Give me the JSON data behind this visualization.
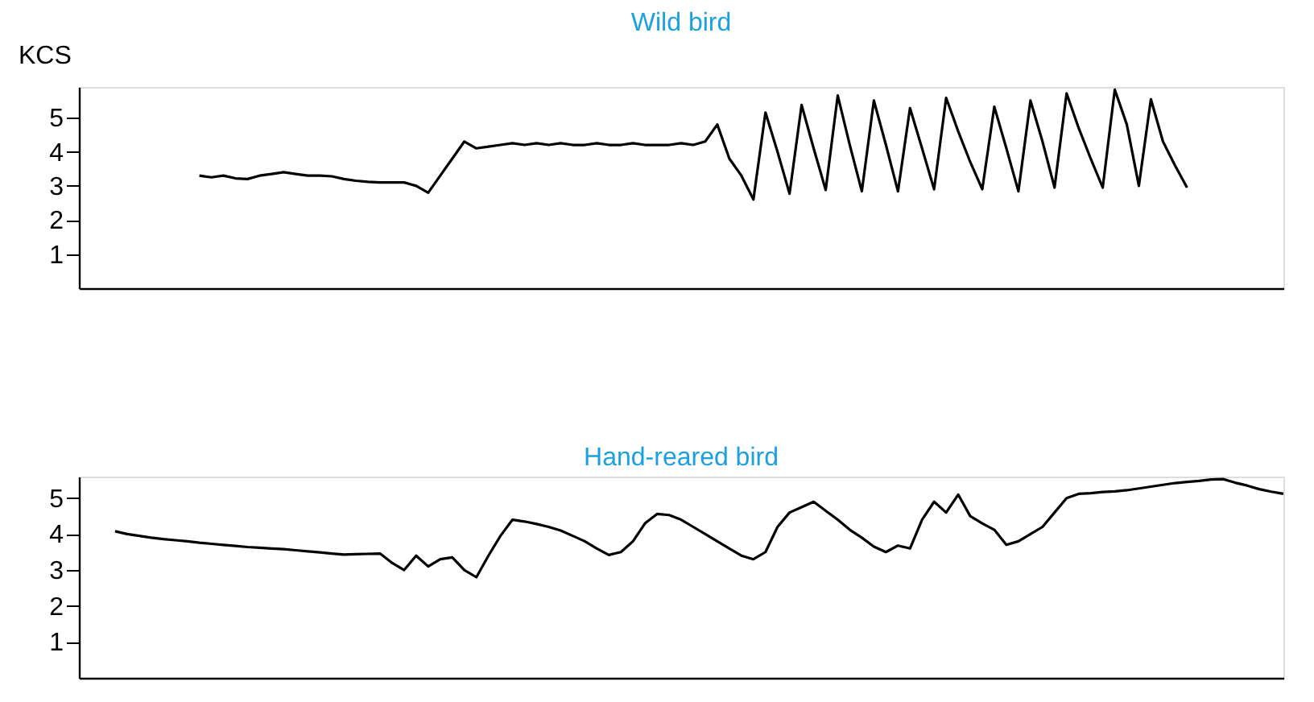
{
  "chart_data": [
    {
      "type": "line",
      "title": "Wild bird",
      "ylabel": "KCS",
      "categories": [
        null,
        null,
        null,
        null,
        null,
        null,
        null,
        null,
        null,
        null,
        null,
        null,
        null,
        null,
        null,
        null,
        null,
        null,
        null,
        null,
        null,
        null,
        null,
        null,
        null,
        null,
        null,
        null,
        null,
        null,
        null,
        null,
        null,
        null,
        null,
        null,
        null,
        null,
        null,
        null,
        null,
        null,
        null,
        null,
        null,
        null,
        null,
        null,
        null,
        null,
        null,
        null,
        null,
        null,
        null,
        null,
        null,
        null,
        null,
        null,
        null,
        null,
        null,
        null,
        null,
        null,
        null,
        null,
        null,
        null,
        null,
        null,
        null,
        null,
        null,
        null,
        null,
        null,
        null,
        null,
        null,
        null,
        null,
        null,
        null,
        null,
        null,
        null,
        null,
        null,
        null,
        null,
        null,
        null,
        null,
        null,
        null,
        null,
        null,
        null,
        null
      ],
      "ylim": [
        0,
        5.9
      ],
      "yticks": [
        1,
        2,
        3,
        4,
        5
      ],
      "tick_labels": "y",
      "grid": false,
      "legend": false,
      "marker": "none",
      "line_style": "solid",
      "series": [
        {
          "color": "#000000",
          "values": [
            null,
            null,
            null,
            null,
            null,
            null,
            null,
            null,
            null,
            null,
            3.3,
            3.25,
            3.3,
            3.22,
            3.2,
            3.3,
            3.35,
            3.4,
            3.35,
            3.3,
            3.3,
            3.28,
            3.2,
            3.15,
            3.12,
            3.1,
            3.1,
            3.1,
            3.0,
            2.8,
            3.3,
            3.8,
            4.3,
            4.1,
            4.15,
            4.2,
            4.25,
            4.2,
            4.25,
            4.2,
            4.25,
            4.2,
            4.2,
            4.25,
            4.2,
            4.2,
            4.25,
            4.2,
            4.2,
            4.2,
            4.25,
            4.2,
            4.3,
            4.8,
            3.8,
            3.3,
            2.6,
            5.15,
            4.0,
            2.77,
            5.37,
            4.1,
            2.88,
            5.65,
            4.2,
            2.84,
            5.5,
            4.2,
            2.84,
            5.28,
            4.1,
            2.9,
            5.58,
            4.6,
            3.7,
            2.9,
            5.32,
            4.1,
            2.84,
            5.5,
            4.3,
            2.95,
            5.71,
            4.7,
            3.8,
            2.95,
            5.82,
            4.8,
            3.0,
            5.54,
            4.3,
            3.6,
            2.95,
            null,
            null,
            null,
            null,
            null,
            null,
            null,
            null
          ]
        }
      ]
    },
    {
      "type": "line",
      "title": "Hand-reared bird",
      "categories": [
        null,
        null,
        null,
        null,
        null,
        null,
        null,
        null,
        null,
        null,
        null,
        null,
        null,
        null,
        null,
        null,
        null,
        null,
        null,
        null,
        null,
        null,
        null,
        null,
        null,
        null,
        null,
        null,
        null,
        null,
        null,
        null,
        null,
        null,
        null,
        null,
        null,
        null,
        null,
        null,
        null,
        null,
        null,
        null,
        null,
        null,
        null,
        null,
        null,
        null,
        null,
        null,
        null,
        null,
        null,
        null,
        null,
        null,
        null,
        null,
        null,
        null,
        null,
        null,
        null,
        null,
        null,
        null,
        null,
        null,
        null,
        null,
        null,
        null,
        null,
        null,
        null,
        null,
        null,
        null,
        null,
        null,
        null,
        null,
        null,
        null,
        null,
        null,
        null,
        null,
        null,
        null,
        null,
        null,
        null,
        null,
        null,
        null,
        null,
        null,
        null
      ],
      "ylim": [
        0,
        5.6
      ],
      "yticks": [
        1,
        2,
        3,
        4,
        5
      ],
      "tick_labels": "y",
      "grid": false,
      "legend": false,
      "marker": "none",
      "line_style": "solid",
      "series": [
        {
          "color": "#000000",
          "values": [
            null,
            null,
            null,
            4.08,
            4.0,
            3.95,
            3.9,
            3.86,
            3.83,
            3.8,
            3.76,
            3.73,
            3.7,
            3.67,
            3.64,
            3.62,
            3.6,
            3.58,
            3.55,
            3.52,
            3.49,
            3.46,
            3.43,
            3.44,
            3.45,
            3.46,
            3.2,
            3.0,
            3.4,
            3.1,
            3.3,
            3.35,
            3.0,
            2.8,
            3.4,
            3.95,
            4.4,
            4.35,
            4.28,
            4.2,
            4.1,
            3.95,
            3.8,
            3.6,
            3.42,
            3.5,
            3.8,
            4.3,
            4.56,
            4.53,
            4.4,
            4.2,
            4.0,
            3.8,
            3.6,
            3.4,
            3.3,
            3.5,
            4.2,
            4.6,
            4.75,
            4.9,
            4.65,
            4.4,
            4.12,
            3.9,
            3.65,
            3.5,
            3.68,
            3.6,
            4.4,
            4.9,
            4.6,
            5.1,
            4.5,
            4.3,
            4.12,
            3.7,
            3.8,
            4.0,
            4.2,
            4.6,
            5.0,
            5.12,
            5.14,
            5.17,
            5.19,
            5.22,
            5.27,
            5.32,
            5.37,
            5.42,
            5.45,
            5.48,
            5.52,
            5.53,
            5.43,
            5.35,
            5.25,
            5.18,
            5.12
          ]
        }
      ]
    }
  ]
}
